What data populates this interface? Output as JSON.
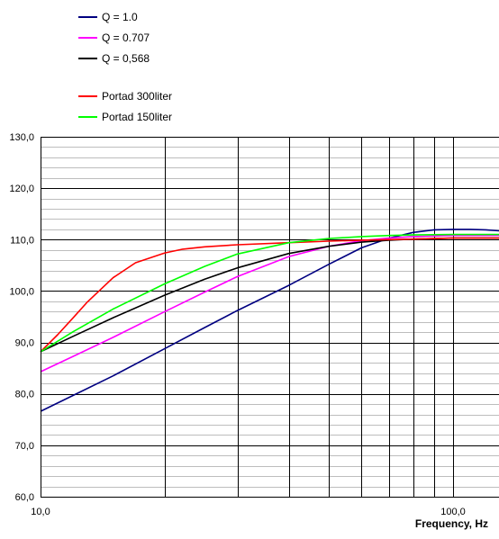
{
  "chart_data": {
    "type": "line",
    "title": "",
    "xlabel": "Frequency, Hz",
    "ylabel": "",
    "x_scale": "log",
    "xlim": [
      10,
      130
    ],
    "ylim": [
      60,
      130
    ],
    "x_ticks": [
      {
        "value": 10,
        "label": "10,0"
      },
      {
        "value": 100,
        "label": "100,0"
      }
    ],
    "y_ticks": [
      {
        "value": 130,
        "label": "130,0"
      },
      {
        "value": 120,
        "label": "120,0"
      },
      {
        "value": 110,
        "label": "110,0"
      },
      {
        "value": 100,
        "label": "100,0"
      },
      {
        "value": 90,
        "label": "90,0"
      },
      {
        "value": 80,
        "label": "80,0"
      },
      {
        "value": 70,
        "label": "70,0"
      },
      {
        "value": 60,
        "label": "60,0"
      }
    ],
    "grid": true,
    "legend_position": "top-left",
    "series": [
      {
        "name": "Q = 1.0",
        "color": "#000080",
        "x": [
          10,
          12,
          15,
          20,
          25,
          30,
          40,
          50,
          60,
          70,
          80,
          90,
          100,
          110,
          120,
          130
        ],
        "y": [
          76.6,
          79.7,
          83.5,
          88.8,
          92.9,
          96.2,
          101.1,
          105.2,
          108.4,
          110.3,
          111.4,
          111.9,
          112.0,
          112.0,
          111.9,
          111.7
        ]
      },
      {
        "name": "Q = 0.707",
        "color": "#ff00ff",
        "x": [
          10,
          12,
          15,
          20,
          25,
          30,
          40,
          50,
          60,
          70,
          80,
          90,
          100,
          110,
          120,
          130
        ],
        "y": [
          84.3,
          87.3,
          91.0,
          96.0,
          99.8,
          102.8,
          106.7,
          108.7,
          109.8,
          110.3,
          110.6,
          110.7,
          110.8,
          110.8,
          110.8,
          110.8
        ]
      },
      {
        "name": "Q = 0,568",
        "color": "#000000",
        "x": [
          10,
          12,
          15,
          20,
          25,
          30,
          40,
          50,
          60,
          70,
          80,
          90,
          100,
          110,
          120,
          130
        ],
        "y": [
          88.2,
          91.2,
          94.8,
          99.2,
          102.3,
          104.5,
          107.3,
          108.7,
          109.5,
          109.9,
          110.1,
          110.2,
          110.3,
          110.3,
          110.3,
          110.3
        ]
      },
      {
        "name": "Portad 300liter",
        "color": "#ff0000",
        "x": [
          10,
          11,
          12,
          13,
          15,
          17,
          20,
          22,
          25,
          30,
          40,
          50,
          60,
          80,
          100,
          130
        ],
        "y": [
          88.2,
          91.5,
          94.8,
          97.9,
          102.6,
          105.5,
          107.4,
          108.1,
          108.6,
          109.0,
          109.4,
          109.7,
          109.9,
          110.1,
          110.3,
          110.3
        ]
      },
      {
        "name": "Portad 150liter",
        "color": "#00ff00",
        "x": [
          10,
          12,
          15,
          20,
          25,
          30,
          40,
          50,
          60,
          70,
          80,
          100,
          130
        ],
        "y": [
          88.2,
          92.1,
          96.5,
          101.4,
          104.8,
          107.2,
          109.4,
          110.2,
          110.6,
          110.8,
          110.9,
          111.0,
          111.0
        ]
      }
    ]
  }
}
